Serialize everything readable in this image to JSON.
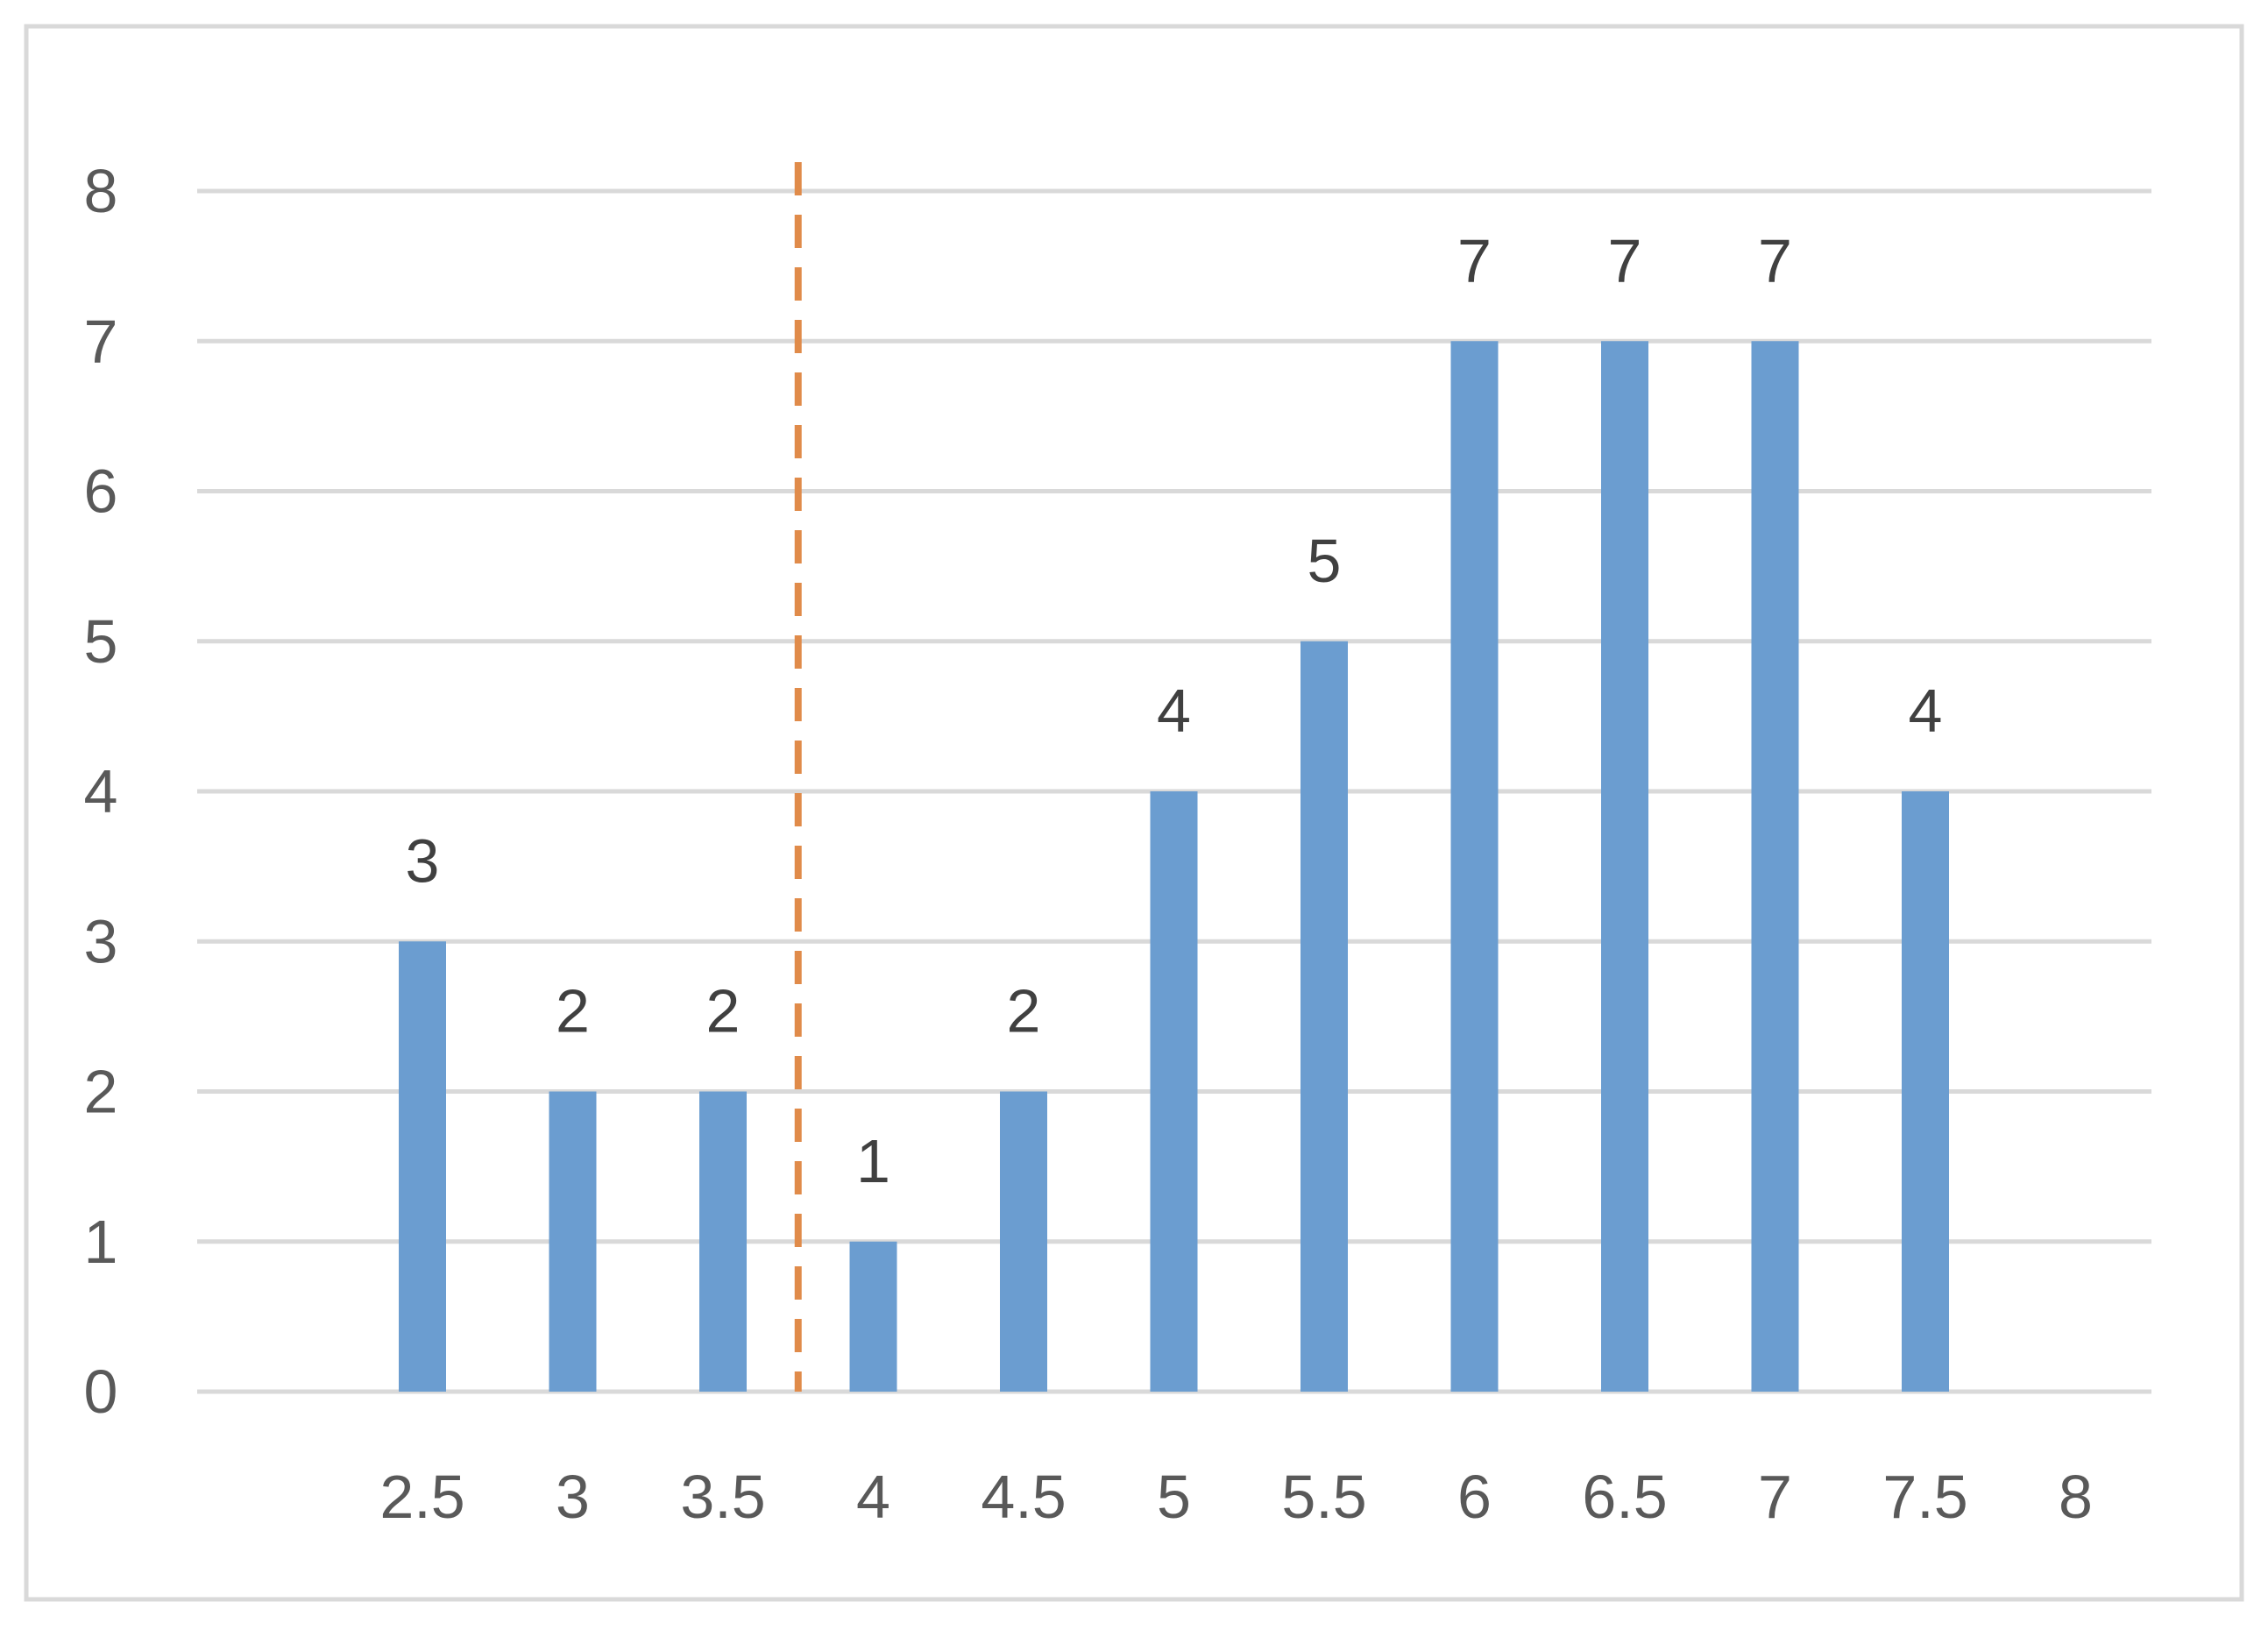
{
  "chart_data": {
    "type": "bar",
    "categories": [
      "2.5",
      "3",
      "3.5",
      "4",
      "4.5",
      "5",
      "5.5",
      "6",
      "6.5",
      "7",
      "7.5",
      "8"
    ],
    "series": [
      {
        "values": [
          3,
          2,
          2,
          1,
          2,
          4,
          5,
          7,
          7,
          7,
          4,
          null
        ]
      }
    ],
    "data_labels": [
      "3",
      "2",
      "2",
      "1",
      "2",
      "4",
      "5",
      "7",
      "7",
      "7",
      "4",
      ""
    ],
    "y_ticks": [
      "0",
      "1",
      "2",
      "3",
      "4",
      "5",
      "6",
      "7",
      "8"
    ],
    "ylim": [
      0,
      8
    ],
    "grid": true,
    "reference_line": {
      "style": "dashed",
      "orientation": "vertical",
      "x_position_between": [
        "3.5",
        "4"
      ]
    },
    "colors": {
      "bar": "#6b9dd0",
      "reference_line": "#e08b4a",
      "gridline": "#d9d9d9",
      "axis_text": "#595959",
      "label_text": "#404040",
      "frame_border": "#d9d9d9"
    }
  }
}
